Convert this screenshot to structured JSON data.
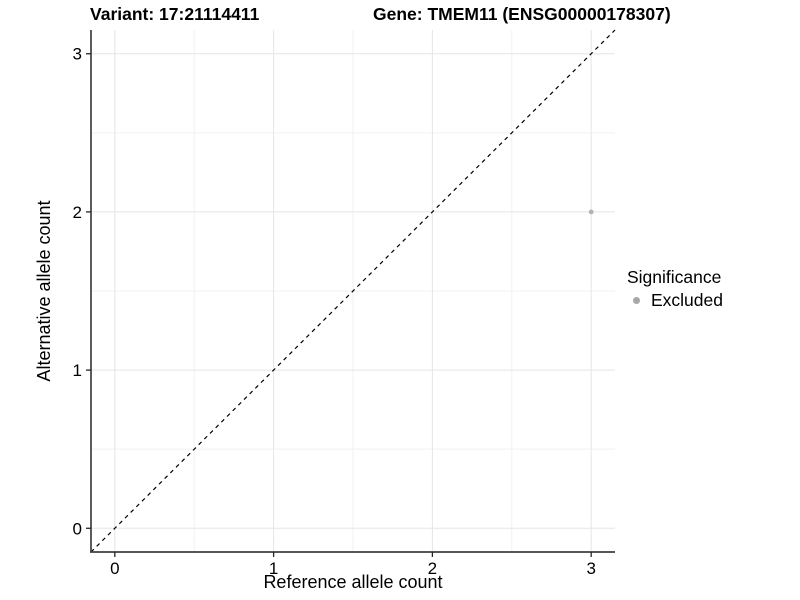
{
  "header": {
    "variant_title": "Variant: 17:21114411",
    "gene_title": "Gene: TMEM11 (ENSG00000178307)"
  },
  "chart_data": {
    "type": "scatter",
    "xlabel": "Reference allele count",
    "ylabel": "Alternative allele count",
    "xlim": [
      -0.15,
      3.15
    ],
    "ylim": [
      -0.15,
      3.15
    ],
    "xticks": [
      0,
      1,
      2,
      3
    ],
    "yticks": [
      0,
      1,
      2,
      3
    ],
    "minor_xticks": [
      0.5,
      1.5,
      2.5
    ],
    "minor_yticks": [
      0.5,
      1.5,
      2.5
    ],
    "grid": true,
    "series": [
      {
        "name": "Excluded",
        "color": "#b3b3b3",
        "points": [
          {
            "x": 3,
            "y": 2
          }
        ]
      }
    ],
    "reference_line": {
      "slope": 1,
      "intercept": 0,
      "style": "dashed",
      "color": "#000000"
    },
    "legend": {
      "position": "right",
      "title": "Significance",
      "items": [
        {
          "label": "Excluded",
          "color": "#a8a8a8"
        }
      ]
    }
  },
  "colors": {
    "background": "#ffffff",
    "grid_major": "#e5e5e5",
    "grid_minor": "#f1f1f1",
    "axis_line": "#3f3f3f",
    "tick_mark": "#262626",
    "text": "#000000"
  }
}
